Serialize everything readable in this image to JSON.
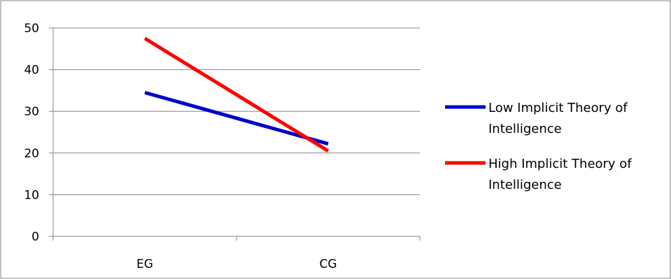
{
  "chart_data": {
    "type": "line",
    "title": "",
    "xlabel": "",
    "ylabel": "",
    "categories": [
      "EG",
      "CG"
    ],
    "ylim": [
      0,
      50
    ],
    "yticks": [
      0,
      10,
      20,
      30,
      40,
      50
    ],
    "grid": true,
    "legend_position": "right",
    "series": [
      {
        "name": "Low Implicit Theory of Intelligence",
        "name_lines": [
          "Low Implicit Theory of",
          "Intelligence"
        ],
        "values": [
          34.5,
          22.2
        ],
        "color": "#0000cc"
      },
      {
        "name": "High Implicit Theory of Intelligence",
        "name_lines": [
          "High Implicit Theory of",
          "Intelligence"
        ],
        "values": [
          47.5,
          20.5
        ],
        "color": "#ff0000"
      }
    ]
  }
}
